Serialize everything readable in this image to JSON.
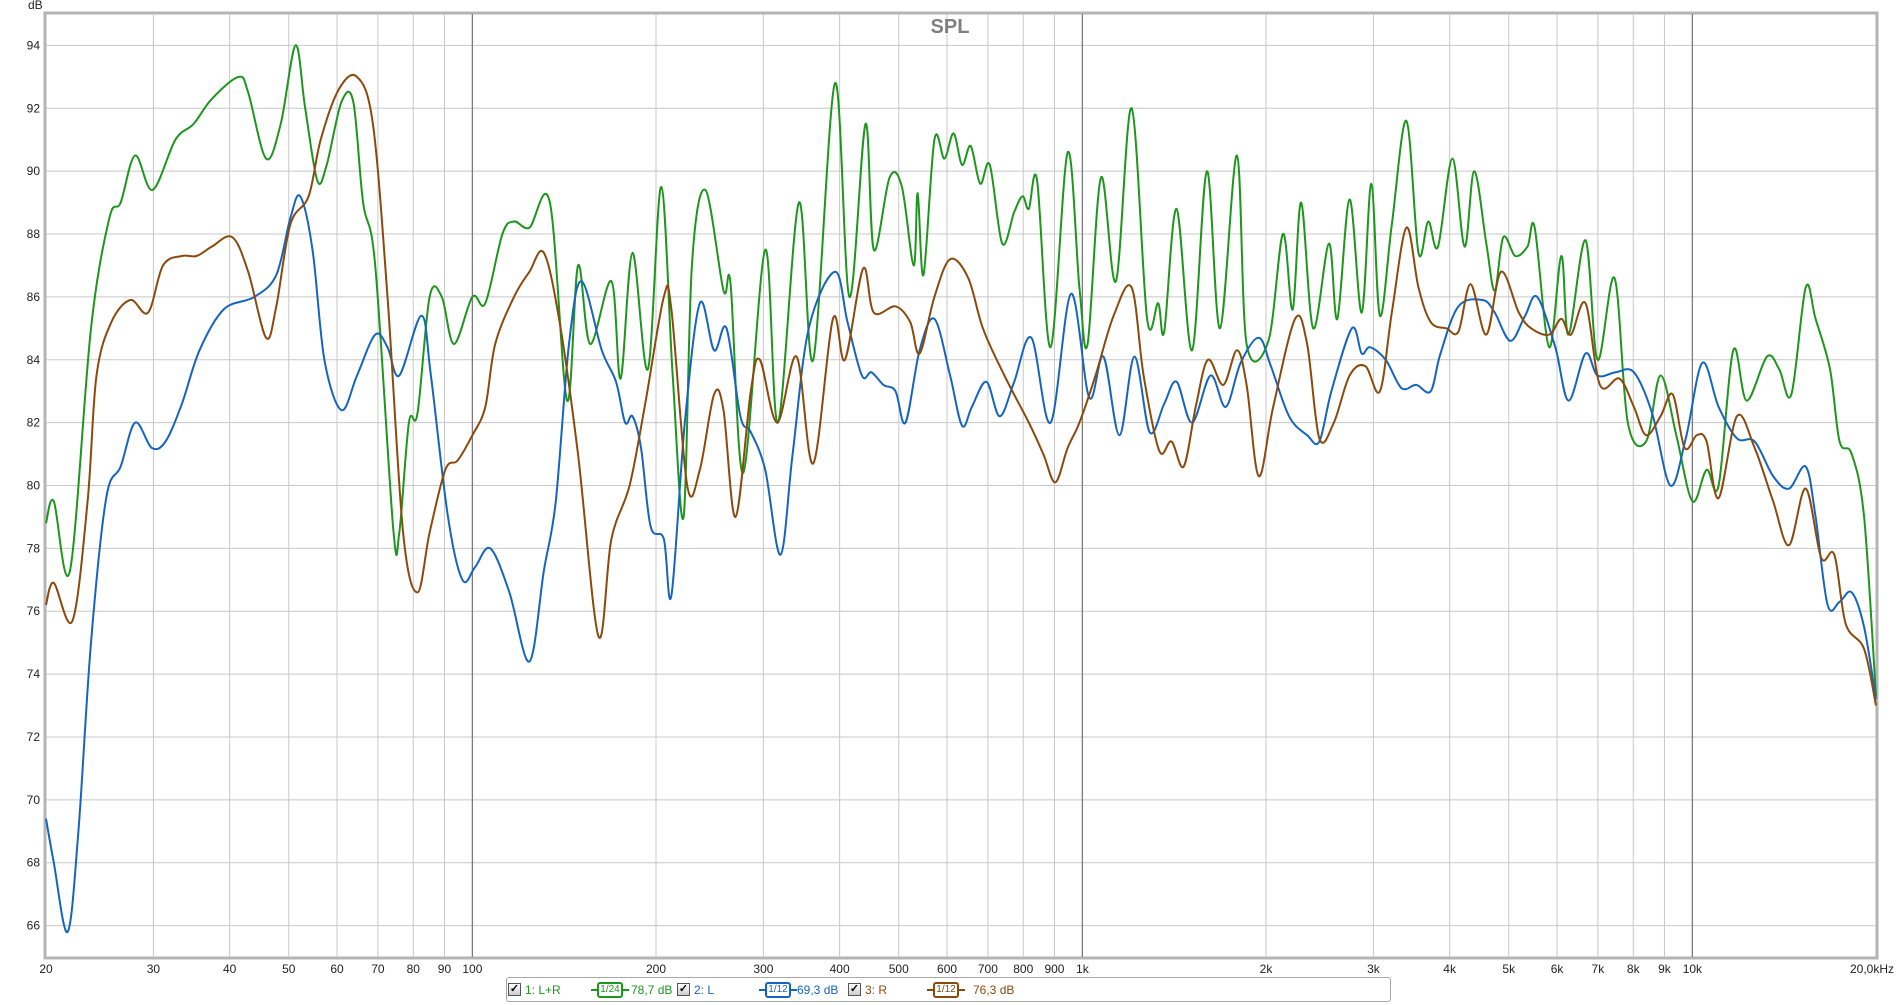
{
  "chart_data": {
    "type": "line",
    "title": "SPL",
    "ylabel": "dB",
    "xlabel": "",
    "x_scale": "log",
    "xlim": [
      20,
      20000
    ],
    "ylim": [
      65,
      95
    ],
    "grid": true,
    "legend_placement": "bottom",
    "x_ticks": [
      {
        "v": 20,
        "label": "20"
      },
      {
        "v": 30,
        "label": "30"
      },
      {
        "v": 40,
        "label": "40"
      },
      {
        "v": 50,
        "label": "50"
      },
      {
        "v": 60,
        "label": "60"
      },
      {
        "v": 70,
        "label": "70"
      },
      {
        "v": 80,
        "label": "80"
      },
      {
        "v": 90,
        "label": "90"
      },
      {
        "v": 100,
        "label": "100"
      },
      {
        "v": 200,
        "label": "200"
      },
      {
        "v": 300,
        "label": "300"
      },
      {
        "v": 400,
        "label": "400"
      },
      {
        "v": 500,
        "label": "500"
      },
      {
        "v": 600,
        "label": "600"
      },
      {
        "v": 700,
        "label": "700"
      },
      {
        "v": 800,
        "label": "800"
      },
      {
        "v": 900,
        "label": "900"
      },
      {
        "v": 1000,
        "label": "1k"
      },
      {
        "v": 2000,
        "label": "2k"
      },
      {
        "v": 3000,
        "label": "3k"
      },
      {
        "v": 4000,
        "label": "4k"
      },
      {
        "v": 5000,
        "label": "5k"
      },
      {
        "v": 6000,
        "label": "6k"
      },
      {
        "v": 7000,
        "label": "7k"
      },
      {
        "v": 8000,
        "label": "8k"
      },
      {
        "v": 9000,
        "label": "9k"
      },
      {
        "v": 10000,
        "label": "10k"
      },
      {
        "v": 20000,
        "label": "20,0kHz"
      }
    ],
    "major_x_gridlines": [
      100,
      1000,
      10000
    ],
    "y_ticks": [
      66,
      68,
      70,
      72,
      74,
      76,
      78,
      80,
      82,
      84,
      86,
      88,
      90,
      92,
      94
    ],
    "series": [
      {
        "name": "1: L+R",
        "smoothing": "1/24",
        "level": "78,7 dB",
        "color": "#1e961e",
        "x": [
          20,
          20.6,
          21.9,
          23.7,
          25.4,
          26.5,
          28.0,
          29.9,
          32.6,
          34.9,
          37.4,
          41.4,
          42.9,
          45.9,
          48.5,
          51.3,
          53.2,
          55.7,
          57.7,
          61.0,
          63.8,
          66.2,
          69.3,
          74.2,
          75.9,
          78.7,
          81.3,
          85.1,
          89.1,
          93.3,
          100,
          105,
          112,
          117,
          124,
          134,
          143,
          149,
          156,
          169,
          175,
          183,
          194,
          204,
          213,
          222,
          229,
          241,
          258,
          265,
          278,
          302,
          317,
          343,
          362,
          393,
          415,
          441,
          455,
          483,
          506,
          529,
          537,
          549,
          572,
          594,
          615,
          635,
          656,
          680,
          705,
          739,
          773,
          798,
          817,
          843,
          887,
          946,
          989,
          1020,
          1073,
          1135,
          1204,
          1277,
          1331,
          1362,
          1427,
          1513,
          1600,
          1681,
          1792,
          1859,
          2018,
          2132,
          2212,
          2284,
          2390,
          2536,
          2618,
          2742,
          2870,
          2976,
          3074,
          3216,
          3398,
          3556,
          3690,
          3828,
          4042,
          4232,
          4388,
          4594,
          4742,
          4898,
          5126,
          5366,
          5514,
          5824,
          6098,
          6266,
          6680,
          6992,
          7454,
          7836,
          8396,
          8868,
          9410,
          10000,
          10550,
          11040,
          11670,
          12270,
          13250,
          13880,
          14530,
          15340,
          15920,
          16810,
          17430,
          18250,
          19120,
          20000
        ],
        "y": [
          78.8,
          79.5,
          77.3,
          85,
          88.5,
          89,
          90.5,
          89.4,
          91,
          91.5,
          92.3,
          93,
          92.5,
          90.4,
          91.5,
          94,
          92,
          89.7,
          90.2,
          92.2,
          92.2,
          89,
          87,
          78.6,
          78.5,
          82,
          82.3,
          86,
          86,
          84.5,
          86,
          85.8,
          88,
          88.4,
          88.2,
          89,
          82.7,
          87,
          84.5,
          86.5,
          83.4,
          87.4,
          83.7,
          89.5,
          83.5,
          79,
          87,
          89.4,
          86.2,
          86.4,
          80.4,
          87.5,
          82,
          89,
          84,
          92.8,
          86,
          91.5,
          87.5,
          89.8,
          89.5,
          87,
          89.3,
          86.7,
          91,
          90.4,
          91.2,
          90.2,
          90.8,
          89.6,
          90.2,
          87.7,
          88.7,
          89.2,
          88.8,
          89.7,
          84.4,
          90.6,
          86.3,
          84.5,
          89.8,
          86.5,
          92,
          85.3,
          85.8,
          84.9,
          88.8,
          84.3,
          90,
          85,
          90.5,
          84.5,
          84.6,
          88,
          85.6,
          89,
          85,
          87.7,
          85.3,
          89.1,
          85.5,
          89.6,
          85.4,
          88.3,
          91.6,
          87.4,
          88.4,
          87.6,
          90.4,
          87.6,
          90,
          87.7,
          86.2,
          87.9,
          87.3,
          87.6,
          88.2,
          84.4,
          87.3,
          84.8,
          87.8,
          84,
          86.6,
          82,
          81.4,
          83.5,
          81.6,
          79.5,
          80.5,
          80,
          84.3,
          82.7,
          84.1,
          83.7,
          82.9,
          86.3,
          85.3,
          83.7,
          81.4,
          81,
          79,
          73.3
        ]
      },
      {
        "name": "2: L",
        "smoothing": "1/12",
        "level": "69,3 dB",
        "color": "#1565c0",
        "x": [
          20,
          20.6,
          21.7,
          22.6,
          23.7,
          25.1,
          26.5,
          28.0,
          29.8,
          31.4,
          33.4,
          35.7,
          39.1,
          43.9,
          47.7,
          50.3,
          52.2,
          54.7,
          57.2,
          61.0,
          64.7,
          69.3,
          72.6,
          75.9,
          82.5,
          85.5,
          91.2,
          96.3,
          101,
          107,
          115,
          124,
          131,
          137,
          144,
          151,
          163,
          172,
          178,
          183,
          189,
          196,
          206,
          212,
          223,
          236,
          249,
          261,
          275,
          286,
          302,
          320,
          335,
          356,
          393,
          412,
          435,
          451,
          472,
          494,
          513,
          541,
          572,
          607,
          635,
          659,
          696,
          732,
          773,
          825,
          887,
          958,
          1026,
          1083,
          1150,
          1217,
          1289,
          1362,
          1427,
          1513,
          1622,
          1718,
          1817,
          1946,
          2037,
          2182,
          2336,
          2446,
          2560,
          2766,
          2870,
          2962,
          3142,
          3336,
          3526,
          3724,
          3864,
          4136,
          4532,
          4742,
          5032,
          5318,
          5566,
          5960,
          6266,
          6680,
          6992,
          7488,
          8018,
          8590,
          9200,
          9756,
          10380,
          11040,
          11830,
          12650,
          13560,
          14400,
          15340,
          15920,
          16660,
          17430,
          18250,
          19120,
          20000
        ],
        "y": [
          69.4,
          68,
          65.8,
          69,
          75,
          79.6,
          80.6,
          82,
          81.2,
          81.4,
          82.6,
          84.3,
          85.6,
          86,
          86.7,
          88.5,
          89.2,
          87.5,
          84,
          82.4,
          83.5,
          84.8,
          84.4,
          83.5,
          85.4,
          83.5,
          79,
          77,
          77.4,
          78,
          76.6,
          74.4,
          77.3,
          79.5,
          84.5,
          86.5,
          84.3,
          83.3,
          82,
          82.2,
          81.2,
          78.7,
          78.3,
          76.5,
          82,
          85.8,
          84.3,
          85,
          82.2,
          81.7,
          80.5,
          77.8,
          81,
          85,
          86.8,
          85.2,
          83.5,
          83.6,
          83.2,
          83,
          82,
          84.3,
          85.3,
          83.5,
          81.9,
          82.5,
          83.3,
          82.2,
          83.3,
          84.7,
          82,
          86.1,
          82.8,
          84.1,
          81.6,
          84.1,
          81.7,
          82.6,
          83.3,
          82,
          83.5,
          82.5,
          83.9,
          84.7,
          83.8,
          82.2,
          81.6,
          81.4,
          83,
          85,
          84.2,
          84.4,
          84,
          83.1,
          83.2,
          83,
          84.2,
          85.7,
          85.9,
          85.5,
          84.6,
          85.4,
          86,
          84.4,
          82.7,
          84.2,
          83.5,
          83.6,
          83.6,
          82.3,
          80,
          81.5,
          83.9,
          82.5,
          81.5,
          81.4,
          80.3,
          79.9,
          80.6,
          79,
          76.2,
          76.3,
          76.6,
          75.5,
          73.2
        ]
      },
      {
        "name": "3: R",
        "smoothing": "1/12",
        "level": "76,3 dB",
        "color": "#8b4a0c",
        "x": [
          20,
          20.6,
          22.1,
          23.4,
          24.2,
          25.6,
          27.5,
          29.4,
          31.1,
          33.4,
          35.3,
          37.4,
          40.4,
          42.9,
          45.9,
          47.7,
          50.3,
          53.9,
          56.4,
          60.4,
          64.7,
          68.7,
          72.6,
          77.0,
          81.3,
          85.1,
          90.3,
          94.6,
          100,
          105,
          109,
          117,
          124,
          131,
          139,
          149,
          161,
          169,
          181,
          192,
          206,
          212,
          225,
          236,
          249,
          258,
          270,
          286,
          296,
          316,
          340,
          362,
          390,
          408,
          437,
          455,
          494,
          522,
          541,
          572,
          607,
          650,
          687,
          745,
          817,
          863,
          903,
          946,
          989,
          1051,
          1125,
          1204,
          1260,
          1337,
          1400,
          1466,
          1534,
          1606,
          1702,
          1792,
          1859,
          1946,
          2055,
          2232,
          2336,
          2446,
          2584,
          2742,
          2910,
          3074,
          3216,
          3398,
          3556,
          3724,
          3950,
          4136,
          4330,
          4594,
          4854,
          5194,
          5440,
          5824,
          6098,
          6324,
          6680,
          7054,
          7594,
          8018,
          8396,
          8868,
          9284,
          9712,
          10170,
          10550,
          11040,
          11830,
          12650,
          13560,
          14400,
          15340,
          16260,
          17090,
          17840,
          19120,
          20000
        ],
        "y": [
          76.2,
          76.9,
          75.7,
          79.5,
          83.5,
          85.2,
          85.9,
          85.5,
          87,
          87.3,
          87.3,
          87.6,
          87.9,
          86.8,
          84.7,
          85.7,
          88.3,
          89.2,
          91,
          92.6,
          93,
          91.5,
          86,
          78.5,
          76.6,
          78.5,
          80.5,
          80.8,
          81.6,
          82.5,
          84.5,
          86,
          86.8,
          87.4,
          85.2,
          81,
          75.2,
          78.3,
          80,
          82.6,
          86,
          85.6,
          80,
          80.5,
          82.9,
          82.4,
          79,
          83,
          84,
          82,
          84.1,
          80.7,
          85.3,
          84,
          86.9,
          85.5,
          85.7,
          85.2,
          84.2,
          86,
          87.2,
          86.6,
          85,
          83.5,
          82,
          81,
          80.1,
          81.2,
          82,
          83.5,
          85.4,
          86.3,
          83.5,
          81.1,
          81.4,
          80.6,
          82.5,
          84,
          83.2,
          84.3,
          83.2,
          80.3,
          82.5,
          85.3,
          84.5,
          81.5,
          82,
          83.5,
          83.8,
          83,
          85.5,
          88.2,
          86.3,
          85.2,
          85,
          84.9,
          86.4,
          84.8,
          86.8,
          85.5,
          85,
          84.8,
          85.3,
          84.8,
          85.8,
          83.2,
          83.4,
          82.5,
          81.6,
          82.2,
          82.9,
          81.2,
          81.6,
          81.4,
          79.6,
          82.2,
          81.2,
          79.5,
          78.1,
          79.9,
          77.7,
          77.8,
          75.6,
          74.8,
          73
        ]
      }
    ]
  },
  "legend": {
    "items": [
      {
        "label": "1: L+R",
        "smoothing_num": "1",
        "smoothing_den": "24",
        "level": "78,7 dB",
        "checked": true,
        "color": "#1e961e",
        "checkbox_icon": "checkmark-icon"
      },
      {
        "label": "2: L",
        "smoothing_num": "1",
        "smoothing_den": "12",
        "level": "69,3 dB",
        "checked": true,
        "color": "#1565c0",
        "checkbox_icon": "checkmark-icon"
      },
      {
        "label": "3: R",
        "smoothing_num": "1",
        "smoothing_den": "12",
        "level": "76,3 dB",
        "checked": true,
        "color": "#8b4a0c",
        "checkbox_icon": "checkmark-icon"
      }
    ],
    "check_glyph": "✓"
  }
}
